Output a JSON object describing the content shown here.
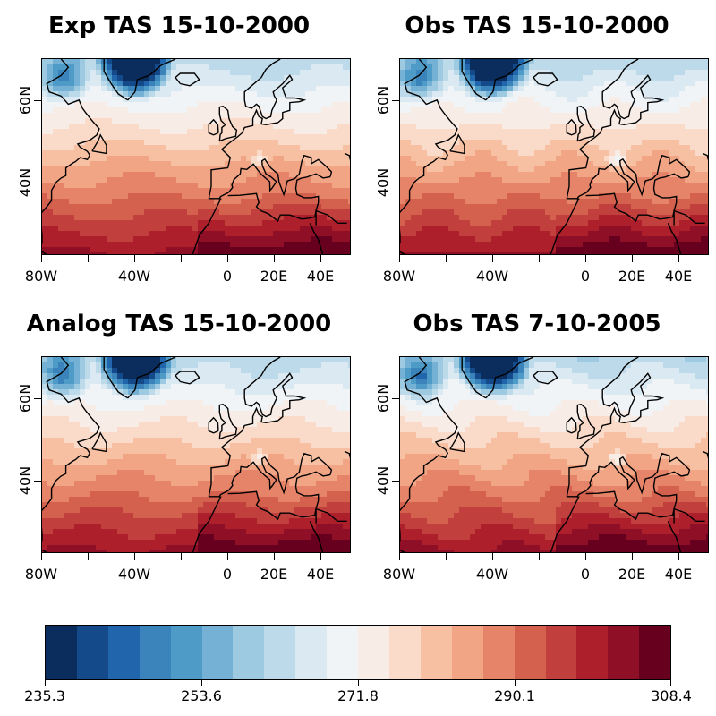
{
  "panels": [
    {
      "title": "Exp TAS 15-10-2000",
      "variant": 0
    },
    {
      "title": "Obs TAS 15-10-2000",
      "variant": 1
    },
    {
      "title": "Analog TAS 15-10-2000",
      "variant": 2
    },
    {
      "title": "Obs TAS 7-10-2005",
      "variant": 3
    }
  ],
  "x_axis_labels": [
    "80W",
    "40W",
    "0",
    "20E",
    "40E"
  ],
  "y_axis_labels": [
    "60N",
    "40N"
  ],
  "colorbar": {
    "tick_labels": [
      "235.3",
      "253.6",
      "271.8",
      "290.1",
      "308.4"
    ],
    "colors": [
      "#0b2d5e",
      "#154a8a",
      "#2166ac",
      "#3a84bb",
      "#4f9bc8",
      "#74b1d4",
      "#9dcae1",
      "#bcdaea",
      "#dbe9f2",
      "#f0f4f7",
      "#f8ece6",
      "#fadbc9",
      "#f7c0a2",
      "#f2a585",
      "#e58468",
      "#d4604e",
      "#c13f3c",
      "#ae1f2c",
      "#8e0f26",
      "#67001f"
    ]
  }
}
